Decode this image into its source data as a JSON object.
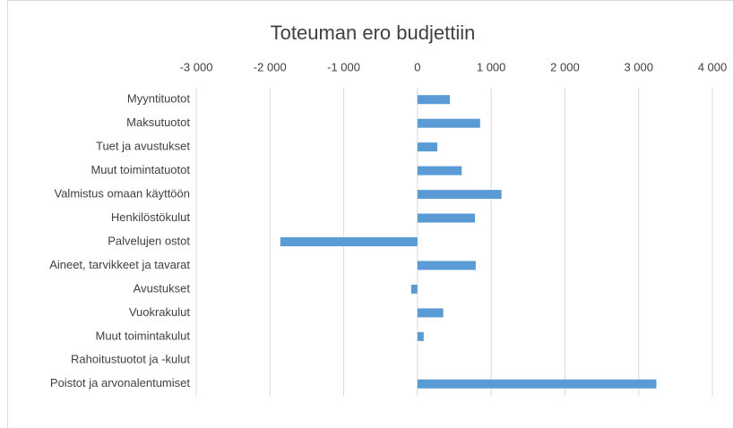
{
  "chart_data": {
    "type": "bar",
    "orientation": "horizontal",
    "title": "Toteuman ero budjettiin",
    "categories": [
      "Myyntituotot",
      "Maksutuotot",
      "Tuet ja avustukset",
      "Muut toimintatuotot",
      "Valmistus omaan käyttöön",
      "Henkilöstökulut",
      "Palvelujen ostot",
      "Aineet, tarvikkeet ja tavarat",
      "Avustukset",
      "Vuokrakulut",
      "Muut toimintakulut",
      "Rahoitustuotot ja -kulut",
      "Poistot ja arvonalentumiset"
    ],
    "values": [
      440,
      850,
      270,
      600,
      1140,
      780,
      -1860,
      790,
      -85,
      350,
      85,
      0,
      3240
    ],
    "color": "#5b9bd5",
    "xlim": [
      -3000,
      4000
    ],
    "xticks": [
      {
        "value": -3000,
        "label": "-3 000"
      },
      {
        "value": -2000,
        "label": "-2 000"
      },
      {
        "value": -1000,
        "label": "-1 000"
      },
      0,
      {
        "value": 1000,
        "label": "1 000"
      },
      {
        "value": 2000,
        "label": "2 000"
      },
      {
        "value": 3000,
        "label": "3 000"
      },
      {
        "value": 4000,
        "label": "4 000"
      }
    ],
    "grid": true
  }
}
